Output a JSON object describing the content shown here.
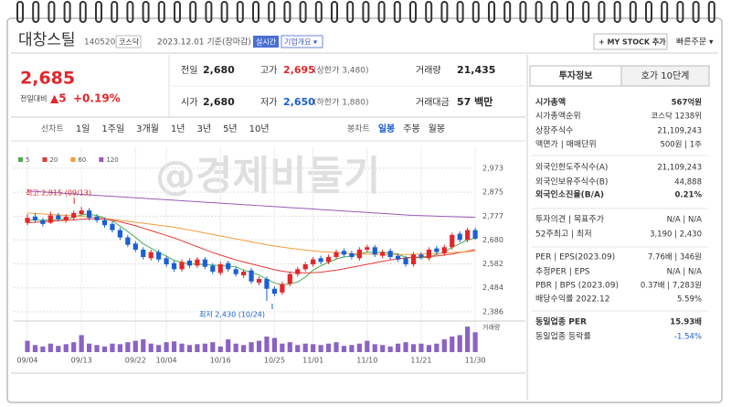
{
  "header": {
    "name": "대창스틸",
    "code": "140520",
    "market": "코스닥",
    "date": "2023.12.01 기준(장마감)",
    "realtime": "실시간",
    "company": "기업개요 ▾",
    "mystock": "+ MY STOCK 추가",
    "quick_order": "빠른주문 ▾"
  },
  "quote": {
    "price": "2,685",
    "change_label": "전일대비",
    "change": "▲5",
    "change_pct": "+0.19%",
    "cells": [
      [
        "전일",
        "2,680"
      ],
      [
        "고가",
        "2,695",
        "(상한가 3,480)"
      ],
      [
        "거래량",
        "21,435"
      ],
      [
        "시가",
        "2,680"
      ],
      [
        "저가",
        "2,650",
        "(하한가 1,880)"
      ],
      [
        "거래대금",
        "57 백만"
      ]
    ]
  },
  "tabs": {
    "line": [
      "선차트",
      "1일",
      "1주일",
      "3개월",
      "1년",
      "3년",
      "5년",
      "10년"
    ],
    "candle": [
      "봉차트",
      "일봉",
      "주봉",
      "월봉"
    ]
  },
  "watermark": "@경제비둘기",
  "chart_data": {
    "type": "candlestick",
    "categories": [
      "09/04",
      null,
      null,
      null,
      null,
      null,
      null,
      "09/13",
      null,
      null,
      null,
      null,
      null,
      null,
      "09/22",
      null,
      null,
      null,
      "10/04",
      null,
      null,
      null,
      null,
      null,
      null,
      "10/16",
      null,
      null,
      null,
      null,
      null,
      null,
      "10/25",
      null,
      null,
      null,
      null,
      "11/01",
      null,
      null,
      null,
      null,
      null,
      null,
      "11/10",
      null,
      null,
      null,
      null,
      null,
      null,
      "11/21",
      null,
      null,
      null,
      null,
      null,
      null,
      "11/30"
    ],
    "open": [
      2750,
      2775,
      2760,
      2750,
      2780,
      2760,
      2770,
      2785,
      2800,
      2775,
      2760,
      2745,
      2720,
      2690,
      2665,
      2640,
      2605,
      2630,
      2605,
      2585,
      2560,
      2595,
      2575,
      2600,
      2575,
      2545,
      2585,
      2560,
      2535,
      2555,
      2505,
      2520,
      2480,
      2465,
      2500,
      2540,
      2560,
      2580,
      2605,
      2590,
      2610,
      2635,
      2625,
      2605,
      2640,
      2650,
      2615,
      2635,
      2615,
      2605,
      2580,
      2620,
      2605,
      2645,
      2625,
      2650,
      2705,
      2680,
      2720
    ],
    "high": [
      2785,
      2790,
      2770,
      2795,
      2790,
      2785,
      2800,
      2815,
      2810,
      2785,
      2770,
      2755,
      2730,
      2700,
      2675,
      2650,
      2640,
      2640,
      2615,
      2595,
      2600,
      2605,
      2610,
      2610,
      2585,
      2590,
      2595,
      2570,
      2560,
      2565,
      2530,
      2530,
      2490,
      2510,
      2550,
      2570,
      2590,
      2610,
      2615,
      2620,
      2640,
      2645,
      2635,
      2650,
      2660,
      2660,
      2640,
      2645,
      2625,
      2615,
      2630,
      2630,
      2650,
      2655,
      2660,
      2710,
      2715,
      2730,
      2730
    ],
    "low": [
      2740,
      2750,
      2735,
      2745,
      2755,
      2750,
      2760,
      2780,
      2760,
      2750,
      2730,
      2710,
      2680,
      2650,
      2630,
      2600,
      2595,
      2590,
      2570,
      2550,
      2550,
      2565,
      2565,
      2560,
      2540,
      2535,
      2550,
      2530,
      2525,
      2500,
      2495,
      2430,
      2450,
      2455,
      2490,
      2530,
      2550,
      2570,
      2580,
      2580,
      2600,
      2610,
      2600,
      2595,
      2630,
      2610,
      2605,
      2600,
      2590,
      2570,
      2570,
      2600,
      2595,
      2620,
      2615,
      2640,
      2670,
      2670,
      2680
    ],
    "close": [
      2770,
      2760,
      2745,
      2780,
      2765,
      2775,
      2790,
      2800,
      2770,
      2760,
      2740,
      2720,
      2690,
      2660,
      2640,
      2610,
      2630,
      2600,
      2580,
      2560,
      2590,
      2575,
      2600,
      2570,
      2550,
      2580,
      2560,
      2540,
      2550,
      2510,
      2520,
      2480,
      2460,
      2500,
      2540,
      2560,
      2580,
      2600,
      2590,
      2610,
      2630,
      2620,
      2610,
      2640,
      2650,
      2620,
      2630,
      2610,
      2600,
      2580,
      2620,
      2610,
      2640,
      2630,
      2650,
      2700,
      2680,
      2720,
      2685
    ],
    "up_color": "#e3262b",
    "down_color": "#1a5fd3",
    "series": [
      {
        "name": "5",
        "color": "#4caf50",
        "values": [
          2760,
          2762,
          2760,
          2762,
          2764,
          2764,
          2773,
          2782,
          2785,
          2779,
          2770,
          2758,
          2736,
          2714,
          2690,
          2664,
          2646,
          2628,
          2614,
          2596,
          2588,
          2581,
          2581,
          2579,
          2577,
          2575,
          2572,
          2570,
          2556,
          2548,
          2536,
          2520,
          2504,
          2496,
          2500,
          2508,
          2528,
          2556,
          2574,
          2588,
          2602,
          2610,
          2614,
          2622,
          2630,
          2628,
          2630,
          2626,
          2622,
          2608,
          2608,
          2606,
          2610,
          2620,
          2630,
          2650,
          2664,
          2680,
          2687
        ]
      },
      {
        "name": "20",
        "color": "#e53935",
        "values": [
          2750,
          2752,
          2754,
          2756,
          2758,
          2760,
          2762,
          2764,
          2766,
          2766,
          2764,
          2760,
          2754,
          2746,
          2738,
          2728,
          2718,
          2708,
          2698,
          2688,
          2676,
          2664,
          2652,
          2640,
          2628,
          2618,
          2608,
          2598,
          2590,
          2582,
          2574,
          2566,
          2558,
          2552,
          2548,
          2546,
          2545,
          2546,
          2548,
          2552,
          2556,
          2562,
          2568,
          2574,
          2580,
          2586,
          2592,
          2598,
          2602,
          2606,
          2608,
          2610,
          2612,
          2614,
          2618,
          2622,
          2628,
          2634,
          2640
        ]
      },
      {
        "name": "60",
        "color": "#f39c3c",
        "values": [
          2790,
          2788,
          2786,
          2784,
          2782,
          2780,
          2778,
          2776,
          2774,
          2772,
          2768,
          2764,
          2760,
          2756,
          2752,
          2748,
          2744,
          2740,
          2736,
          2732,
          2726,
          2720,
          2714,
          2708,
          2702,
          2696,
          2690,
          2684,
          2678,
          2672,
          2666,
          2660,
          2655,
          2650,
          2646,
          2642,
          2638,
          2635,
          2632,
          2630,
          2628,
          2626,
          2624,
          2623,
          2622,
          2621,
          2620,
          2620,
          2620,
          2620,
          2621,
          2622,
          2623,
          2624,
          2626,
          2628,
          2630,
          2632,
          2634
        ]
      },
      {
        "name": "120",
        "color": "#9b59b6",
        "values": [
          2880,
          2878,
          2876,
          2874,
          2872,
          2870,
          2868,
          2866,
          2864,
          2862,
          2860,
          2858,
          2856,
          2854,
          2852,
          2850,
          2848,
          2846,
          2844,
          2842,
          2840,
          2838,
          2836,
          2834,
          2832,
          2830,
          2828,
          2826,
          2824,
          2822,
          2820,
          2818,
          2816,
          2814,
          2812,
          2810,
          2808,
          2806,
          2804,
          2802,
          2800,
          2798,
          2796,
          2794,
          2792,
          2790,
          2788,
          2786,
          2784,
          2782,
          2780,
          2779,
          2778,
          2777,
          2776,
          2775,
          2774,
          2773,
          2772
        ]
      }
    ],
    "ylim": [
      2352,
      2995
    ],
    "yticks": [
      {
        "value": 2973,
        "label": "2,973"
      },
      {
        "value": 2875,
        "label": "2,875"
      },
      {
        "value": 2777,
        "label": "2,777"
      },
      {
        "value": 2680,
        "label": "2,680"
      },
      {
        "value": 2582,
        "label": "2,582"
      },
      {
        "value": 2484,
        "label": "2,484"
      },
      {
        "value": 2386,
        "label": "2,386"
      }
    ],
    "grid": true,
    "annotations": [
      "최고 2,815 (09/13)",
      "최저 2,430 (10/24)"
    ],
    "volume_label": "거래량",
    "volume_color": "#8b63c4",
    "volume_ylim": [
      0,
      100
    ],
    "volume": [
      40,
      25,
      20,
      30,
      22,
      28,
      35,
      60,
      30,
      25,
      20,
      30,
      28,
      35,
      40,
      45,
      30,
      25,
      35,
      38,
      30,
      25,
      28,
      30,
      35,
      20,
      45,
      30,
      25,
      35,
      40,
      55,
      50,
      30,
      35,
      25,
      30,
      28,
      25,
      30,
      35,
      22,
      25,
      30,
      40,
      28,
      25,
      20,
      30,
      35,
      28,
      30,
      25,
      30,
      45,
      55,
      60,
      90,
      70
    ]
  },
  "info": {
    "tabs": [
      "투자정보",
      "호가 10단계"
    ],
    "rows": [
      [
        "시가총액",
        "567억원"
      ],
      [
        "시가총액순위",
        "코스닥 1238위"
      ],
      [
        "상장주식수",
        "21,109,243"
      ],
      [
        "액면가 | 매매단위",
        "500원 | 1주"
      ],
      [
        "외국인한도주식수(A)",
        "21,109,243"
      ],
      [
        "외국인보유주식수(B)",
        "44,888"
      ],
      [
        "외국인소진율(B/A)",
        "0.21%"
      ],
      [
        "투자의견 | 목표주가",
        "N/A | N/A"
      ],
      [
        "52주최고 | 최저",
        "3,190 | 2,430"
      ],
      [
        "PER | EPS(2023.09)",
        "7.76배 | 346원"
      ],
      [
        "추정PER | EPS",
        "N/A | N/A"
      ],
      [
        "PBR | BPS (2023.09)",
        "0.37배 | 7,283원"
      ],
      [
        "배당수익률 2022.12",
        "5.59%"
      ],
      [
        "동일업종 PER",
        "15.93배"
      ],
      [
        "동일업종 등락률",
        "-1.54%"
      ]
    ]
  }
}
